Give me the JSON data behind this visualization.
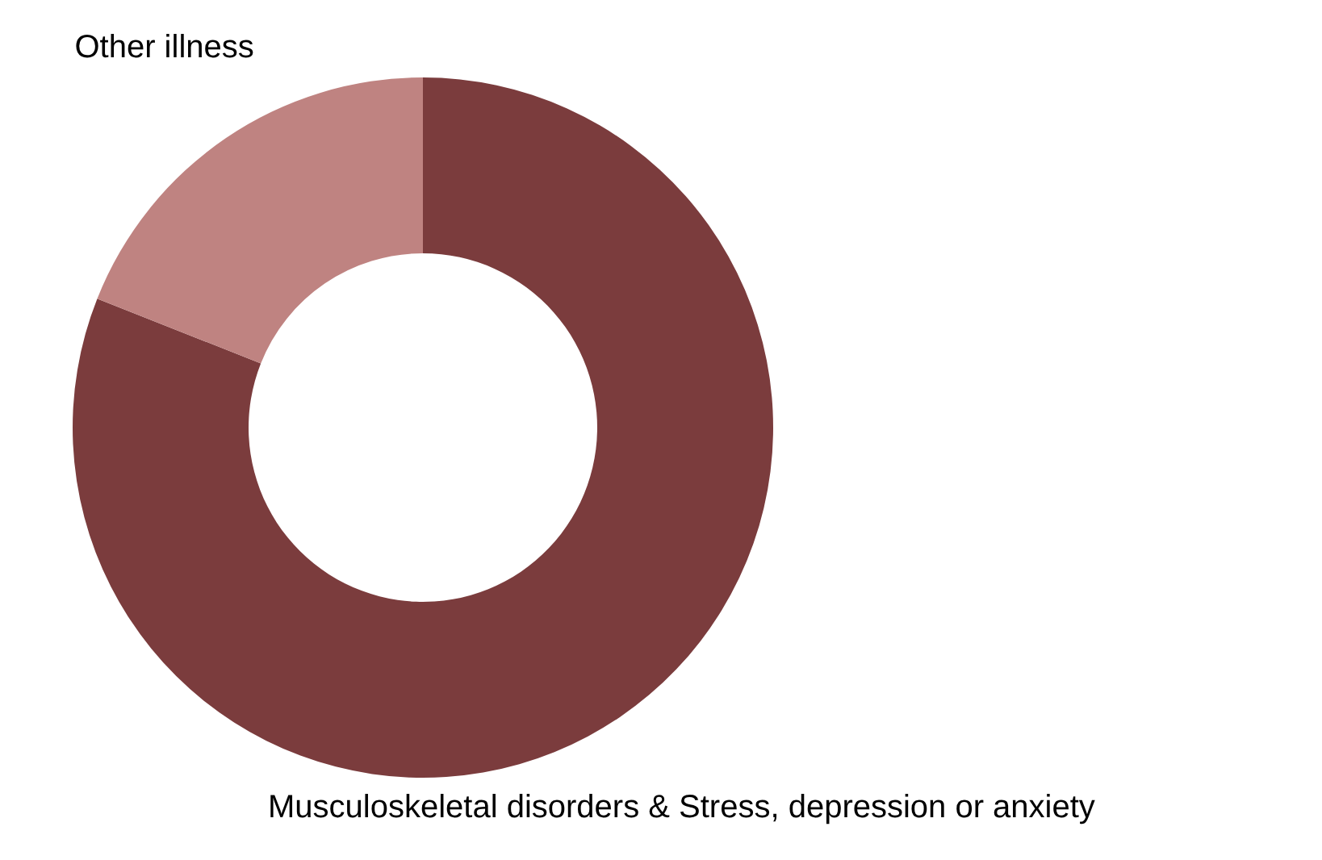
{
  "chart_data": {
    "type": "donut",
    "categories": [
      "Musculoskeletal disorders & Stress, depression or anxiety",
      "Other illness"
    ],
    "values": [
      81,
      19
    ],
    "colors": [
      "#7b3c3d",
      "#bf8381"
    ]
  }
}
